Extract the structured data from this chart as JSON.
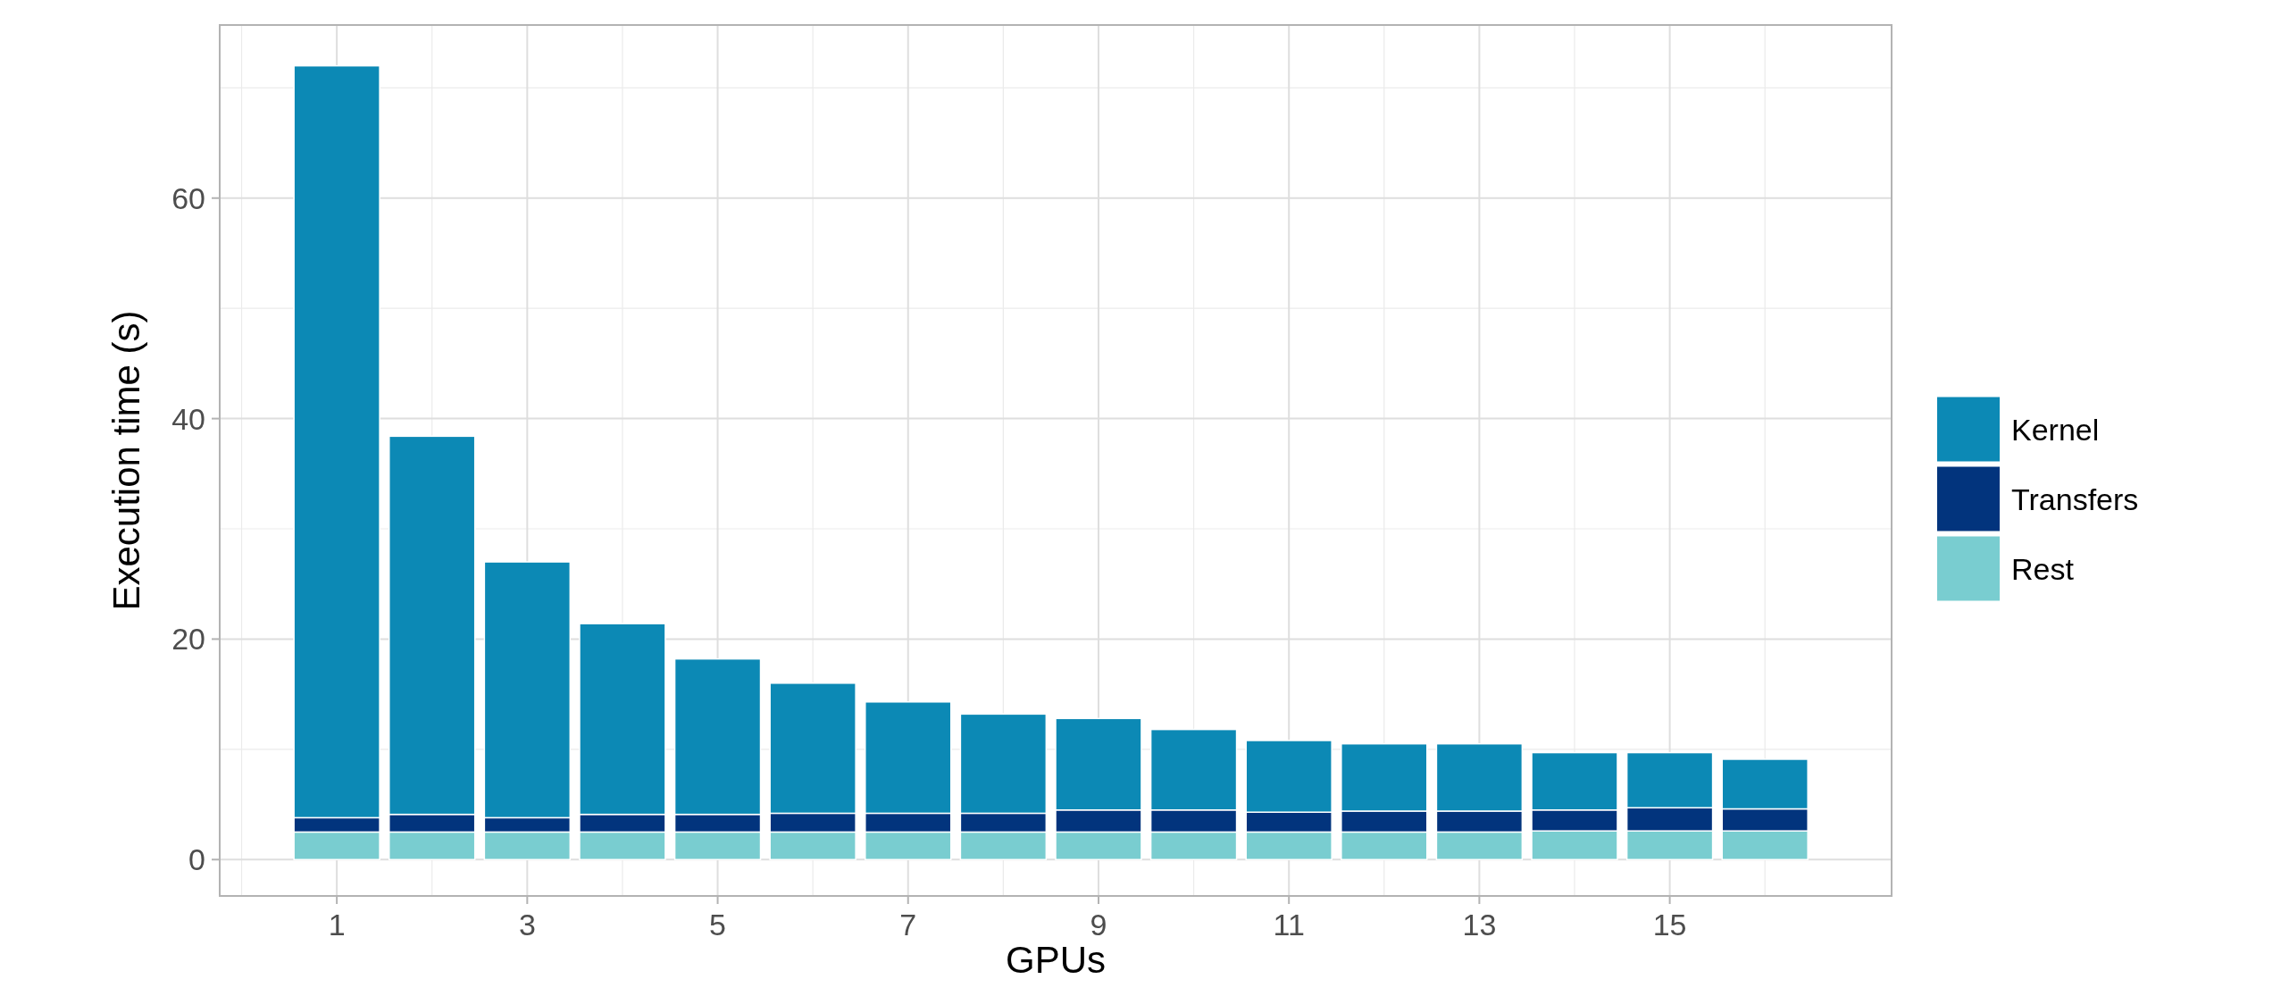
{
  "chart_data": {
    "type": "bar",
    "xlabel": "GPUs",
    "ylabel": "Execution time (s)",
    "x": [
      1,
      2,
      3,
      4,
      5,
      6,
      7,
      8,
      9,
      10,
      11,
      12,
      13,
      14,
      15,
      16
    ],
    "stacked": true,
    "series": [
      {
        "name": "Rest",
        "color": "#79cdd0",
        "values": [
          2.5,
          2.5,
          2.5,
          2.5,
          2.5,
          2.5,
          2.5,
          2.5,
          2.5,
          2.5,
          2.5,
          2.5,
          2.5,
          2.6,
          2.6,
          2.6
        ]
      },
      {
        "name": "Transfers",
        "color": "#02347d",
        "values": [
          1.3,
          1.6,
          1.3,
          1.6,
          1.6,
          1.7,
          1.7,
          1.7,
          2.0,
          2.0,
          1.8,
          1.9,
          1.9,
          1.9,
          2.1,
          2.0
        ]
      },
      {
        "name": "Kernel",
        "color": "#0c89b5",
        "values": [
          68.2,
          34.3,
          23.2,
          17.3,
          14.1,
          11.8,
          10.1,
          9.0,
          8.3,
          7.3,
          6.5,
          6.1,
          6.1,
          5.2,
          5.0,
          4.5
        ]
      }
    ],
    "xlim": [
      -0.23,
      17.33
    ],
    "xticks": [
      1,
      3,
      5,
      7,
      9,
      11,
      13,
      15
    ],
    "ylim": [
      -3.3,
      75.7
    ],
    "yticks": [
      0,
      20,
      40,
      60
    ],
    "grid": true,
    "legend": "right"
  }
}
